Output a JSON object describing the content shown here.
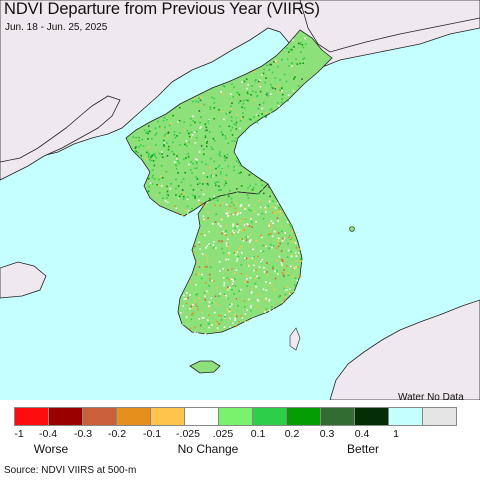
{
  "title": "NDVI Departure from Previous Year (VIIRS)",
  "date_range": "Jun. 18 - Jun. 25, 2025",
  "legend": {
    "water_no_data_label": "Water No Data",
    "swatches": [
      {
        "color": "#fd0d0d"
      },
      {
        "color": "#990000"
      },
      {
        "color": "#c9603b"
      },
      {
        "color": "#e58f1c"
      },
      {
        "color": "#fec44c"
      },
      {
        "color": "#ffffff"
      },
      {
        "color": "#79f26e"
      },
      {
        "color": "#2dcf48"
      },
      {
        "color": "#049d04"
      },
      {
        "color": "#326c32"
      },
      {
        "color": "#052e05"
      },
      {
        "color": "#c6ffff"
      },
      {
        "color": "#e5e5e5"
      }
    ],
    "ticks": [
      "-1",
      "-0.4",
      "-0.3",
      "-0.2",
      "-0.1",
      "-.025",
      ".025",
      "0.1",
      "0.2",
      "0.3",
      "0.4",
      "1"
    ],
    "categories": [
      "Worse",
      "No Change",
      "Better"
    ]
  },
  "source": "Source: NDVI VIIRS at 500-m",
  "colors": {
    "water": "#c6ffff",
    "no_data_land": "#efe9ef",
    "korea_base": "#8ee07a",
    "coastline": "#222222"
  }
}
